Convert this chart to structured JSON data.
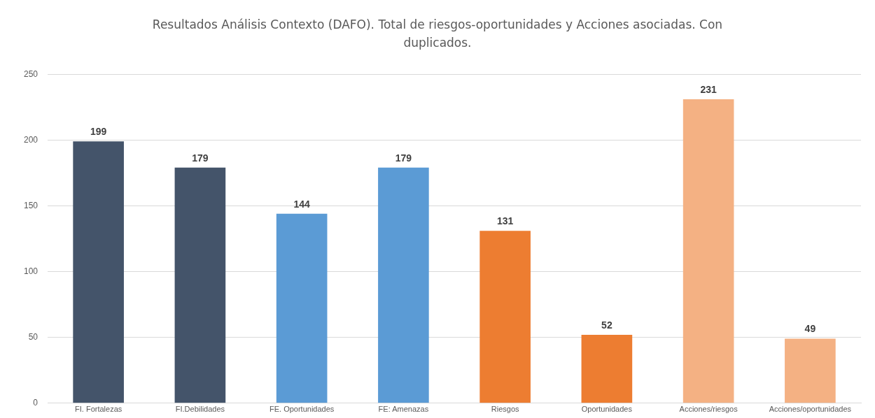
{
  "chart_data": {
    "type": "bar",
    "title": "Resultados Análisis Contexto (DAFO). Total de riesgos-oportunidades  y Acciones asociadas. Con duplicados.",
    "categories": [
      "FI. Fortalezas",
      "FI.Debilidades",
      "FE. Oportunidades",
      "FE: Amenazas",
      "Riesgos",
      "Oportunidades",
      "Acciones/riesgos",
      "Acciones/oportunidades"
    ],
    "values": [
      199,
      179,
      144,
      179,
      131,
      52,
      231,
      49
    ],
    "colors": [
      "#44546a",
      "#44546a",
      "#5b9bd5",
      "#5b9bd5",
      "#ed7d31",
      "#ed7d31",
      "#f4b183",
      "#f4b183"
    ],
    "ylim": [
      0,
      250
    ],
    "yticks": [
      0,
      50,
      100,
      150,
      200,
      250
    ],
    "grid": "y",
    "data_labels": true,
    "legend": false
  }
}
